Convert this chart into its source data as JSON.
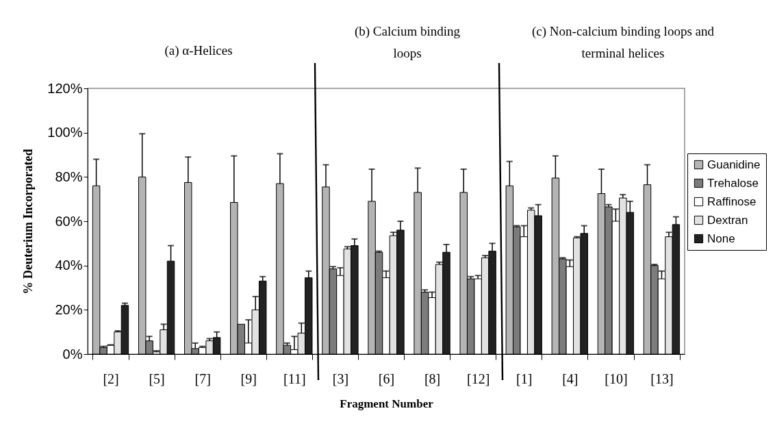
{
  "chart_data": {
    "type": "bar",
    "xlabel": "Fragment Number",
    "ylabel": "% Deuterium Incorporated",
    "categories": [
      "[2]",
      "[5]",
      "[7]",
      "[9]",
      "[11]",
      "[3]",
      "[6]",
      "[8]",
      "[12]",
      "[1]",
      "[4]",
      "[10]",
      "[13]"
    ],
    "series": [
      {
        "name": "Guanidine",
        "color": "#b4b4b4",
        "values": [
          76,
          80,
          77.5,
          68.5,
          77,
          75.5,
          69,
          73,
          73,
          76,
          79.5,
          72.5,
          76.5
        ],
        "errors": [
          [
            76,
            88
          ],
          [
            80,
            99.5
          ],
          [
            77.5,
            89
          ],
          [
            68.5,
            89.5
          ],
          [
            77,
            90.5
          ],
          [
            75.5,
            85.5
          ],
          [
            69,
            83.5
          ],
          [
            73,
            84
          ],
          [
            73,
            83.5
          ],
          [
            76,
            87
          ],
          [
            79.5,
            89.5
          ],
          [
            72.5,
            83.5
          ],
          [
            76.5,
            85.5
          ]
        ]
      },
      {
        "name": "Trehalose",
        "color": "#7c7c7c",
        "values": [
          3,
          6,
          2.5,
          13.5,
          4,
          38.5,
          46,
          28,
          34,
          57.5,
          43,
          66.5,
          40
        ],
        "errors": [
          [
            3,
            3.5
          ],
          [
            6,
            8
          ],
          [
            2.5,
            5
          ],
          null,
          [
            4,
            5
          ],
          [
            38.5,
            39.5
          ],
          [
            46,
            46.5
          ],
          [
            28,
            29
          ],
          [
            34,
            35
          ],
          [
            57.5,
            58
          ],
          [
            43,
            43.5
          ],
          [
            66.5,
            67.5
          ],
          [
            40,
            40.5
          ]
        ]
      },
      {
        "name": "Raffinose",
        "color": "#ffffff",
        "values": [
          4,
          1,
          3,
          5,
          2,
          35.5,
          34.5,
          25.5,
          34,
          53,
          39.5,
          60,
          34
        ],
        "errors": [
          [
            4,
            4.2
          ],
          [
            1,
            1.5
          ],
          [
            3,
            3.5
          ],
          [
            5,
            15.5
          ],
          [
            2,
            8
          ],
          [
            35.5,
            39
          ],
          [
            34.5,
            37.5
          ],
          [
            25.5,
            28
          ],
          [
            34,
            35.5
          ],
          [
            53,
            58
          ],
          [
            39.5,
            42.5
          ],
          [
            60,
            65.5
          ],
          [
            34,
            37.5
          ]
        ]
      },
      {
        "name": "Dextran",
        "color": "#e2e2e2",
        "values": [
          10,
          11,
          6,
          20,
          9.5,
          47.5,
          53.5,
          40.5,
          43.5,
          65,
          52.5,
          70.5,
          53
        ],
        "errors": [
          [
            10,
            10.5
          ],
          [
            11,
            13.5
          ],
          [
            6,
            7
          ],
          [
            20,
            26
          ],
          [
            9.5,
            14
          ],
          [
            47.5,
            48.5
          ],
          [
            53.5,
            55
          ],
          [
            40.5,
            41.5
          ],
          [
            43.5,
            44.5
          ],
          [
            65,
            66
          ],
          [
            52.5,
            53
          ],
          [
            70.5,
            72
          ],
          [
            53,
            55
          ]
        ]
      },
      {
        "name": "None",
        "color": "#222222",
        "values": [
          22,
          42,
          7.5,
          33,
          34.5,
          49,
          56,
          46,
          46.5,
          62.5,
          54.5,
          64,
          58.5
        ],
        "errors": [
          [
            22,
            23
          ],
          [
            42,
            49
          ],
          [
            7.5,
            10
          ],
          [
            33,
            35
          ],
          [
            34.5,
            37.5
          ],
          [
            49,
            52
          ],
          [
            56,
            60
          ],
          [
            46,
            49.5
          ],
          [
            46.5,
            50
          ],
          [
            62.5,
            67.5
          ],
          [
            54.5,
            58
          ],
          [
            64,
            69
          ],
          [
            58.5,
            62
          ]
        ]
      }
    ],
    "ylim": [
      0,
      120
    ],
    "yticks": [
      {
        "value": 0,
        "label": "0%"
      },
      {
        "value": 20,
        "label": "20%"
      },
      {
        "value": 40,
        "label": "40%"
      },
      {
        "value": 60,
        "label": "60%"
      },
      {
        "value": 80,
        "label": "80%"
      },
      {
        "value": 100,
        "label": "100%"
      },
      {
        "value": 120,
        "label": "120%"
      }
    ],
    "grid": false,
    "legend": "right",
    "annotations": [
      "(a) α-Helices",
      "(b) Calcium binding loops",
      "(c) Non-calcium binding loops and terminal helices"
    ]
  }
}
